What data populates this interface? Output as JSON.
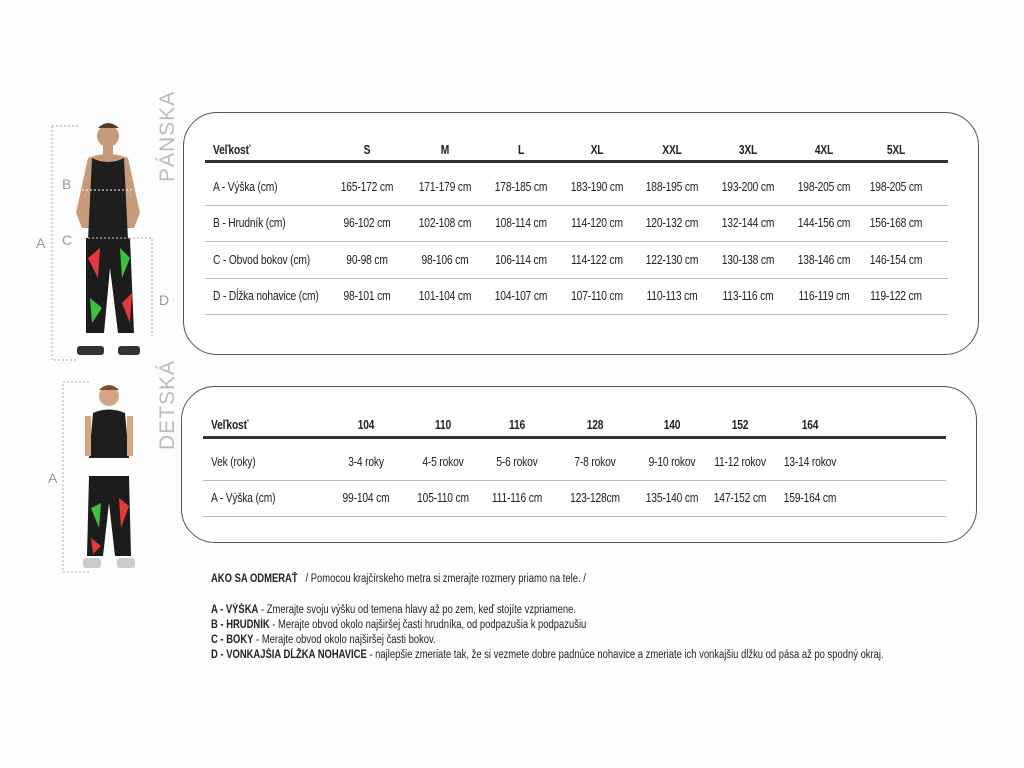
{
  "men": {
    "section_label": "PÁNSKA",
    "header": [
      "Veľkosť",
      "S",
      "M",
      "L",
      "XL",
      "XXL",
      "3XL",
      "4XL",
      "5XL"
    ],
    "rows": [
      [
        "A - Výška (cm)",
        "165-172 cm",
        "171-179 cm",
        "178-185 cm",
        "183-190 cm",
        "188-195 cm",
        "193-200 cm",
        "198-205 cm",
        "198-205 cm"
      ],
      [
        "B - Hrudník (cm)",
        "96-102 cm",
        "102-108 cm",
        "108-114 cm",
        "114-120 cm",
        "120-132 cm",
        "132-144  cm",
        "144-156 cm",
        "156-168 cm"
      ],
      [
        "C - Obvod bokov (cm)",
        "90-98 cm",
        "98-106 cm",
        "106-114 cm",
        "114-122 cm",
        "122-130 cm",
        "130-138 cm",
        "138-146 cm",
        "146-154 cm"
      ],
      [
        "D - Dĺžka nohavice (cm)",
        "98-101 cm",
        "101-104 cm",
        "104-107 cm",
        "107-110 cm",
        "110-113 cm",
        "113-116 cm",
        "116-119 cm",
        "119-122 cm"
      ]
    ],
    "markers": {
      "a": "A",
      "b": "B",
      "c": "C",
      "d": "D"
    }
  },
  "kids": {
    "section_label": "DETSKÁ",
    "header": [
      "Veľkosť",
      "104",
      "110",
      "116",
      "128",
      "140",
      "152",
      "164"
    ],
    "rows": [
      [
        "Vek (roky)",
        "3-4 roky",
        "4-5 rokov",
        "5-6 rokov",
        "7-8 rokov",
        "9-10 rokov",
        "11-12 rokov",
        "13-14 rokov"
      ],
      [
        "A - Výška  (cm)",
        "99-104 cm",
        "105-110 cm",
        "111-116 cm",
        "123-128cm",
        "135-140 cm",
        "147-152 cm",
        "159-164 cm"
      ]
    ],
    "markers": {
      "a": "A"
    }
  },
  "instructions": {
    "title": "AKO SA ODMERAŤ",
    "subtitle": "/ Pomocou krajčírskeho metra si zmerajte rozmery priamo na tele. /",
    "items": [
      {
        "term": "A - VÝŠKA",
        "text": " - Zmerajte svoju výšku od temena hlavy až po zem, keď stojíte vzpriamene."
      },
      {
        "term": "B - HRUDNÍK",
        "text": " - Merajte obvod okolo najširšej časti hrudníka, od podpazušia k podpazušiu"
      },
      {
        "term": "C - BOKY",
        "text": " - Merajte obvod okolo najširšej časti bokov."
      },
      {
        "term": "D - VONKAJŠIA DĹŽKA NOHAVICE",
        "text": " - najlepšie zmeriate tak, že si vezmete dobre padnúce nohavice a zmeriate ich vonkajšiu dĺžku od pása až po spodný okraj."
      }
    ]
  }
}
